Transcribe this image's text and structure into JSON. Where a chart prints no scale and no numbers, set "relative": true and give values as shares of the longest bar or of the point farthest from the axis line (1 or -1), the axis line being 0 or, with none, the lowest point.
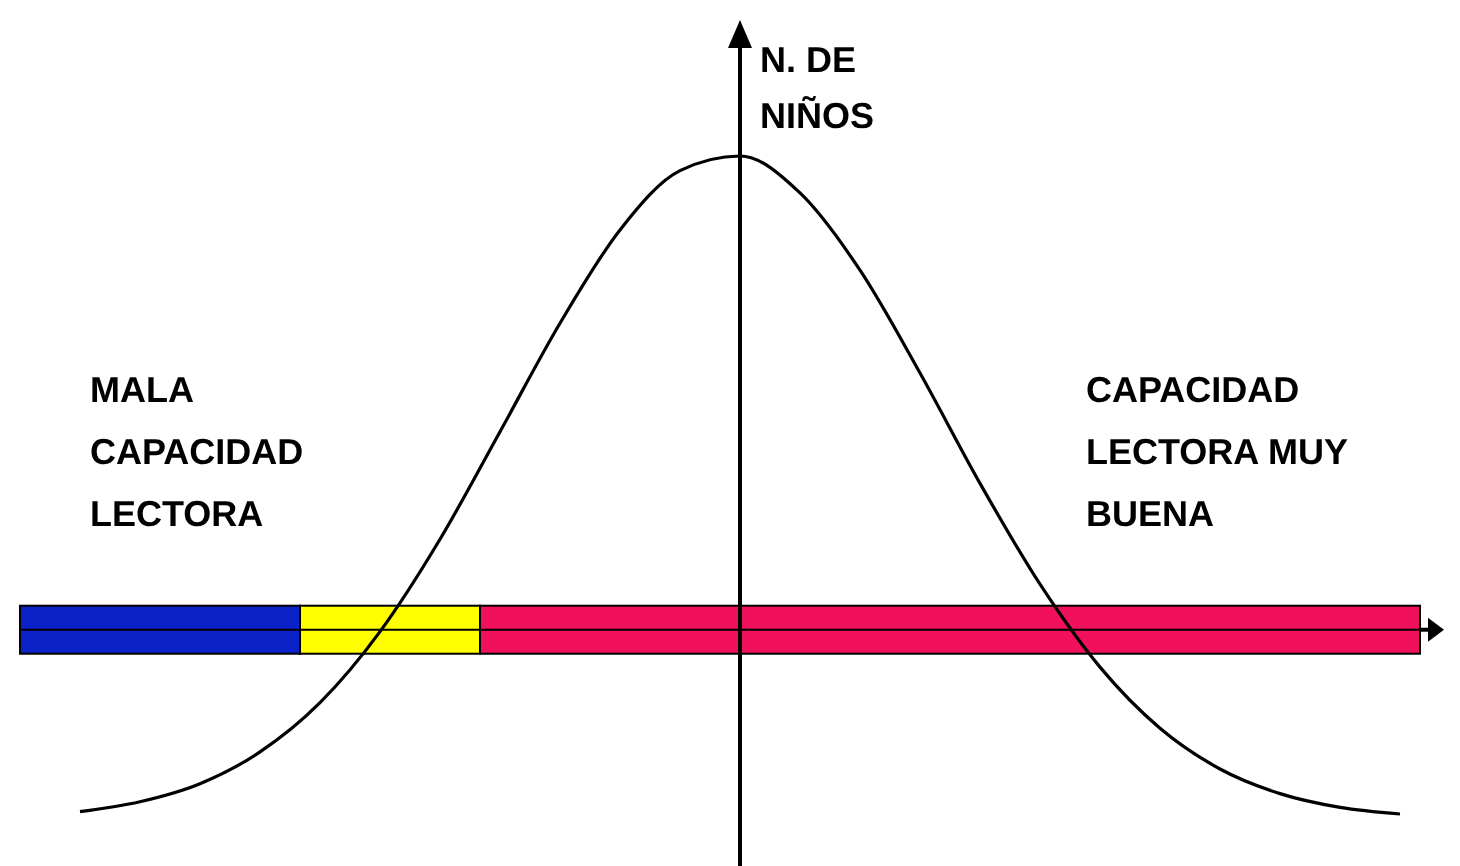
{
  "chart_data": {
    "type": "line",
    "relative": true,
    "ylabel": "N. DE NIÑOS",
    "annotations": [
      "MALA CAPACIDAD LECTORA",
      "CAPACIDAD LECTORA MUY BUENA"
    ],
    "categories": [
      null,
      null,
      null,
      null,
      null,
      null,
      null,
      null,
      null,
      null,
      null,
      null,
      null,
      null,
      null,
      null,
      null,
      null,
      null,
      null,
      null,
      null,
      null
    ],
    "series": [
      {
        "color": "#000000",
        "values": [
          -0.384,
          -0.363,
          -0.325,
          -0.258,
          -0.154,
          -0.004,
          0.191,
          0.418,
          0.647,
          0.844,
          0.969,
          1,
          0.922,
          0.759,
          0.542,
          0.309,
          0.096,
          -0.079,
          -0.208,
          -0.294,
          -0.346,
          -0.375,
          -0.389
        ]
      }
    ]
  }
}
